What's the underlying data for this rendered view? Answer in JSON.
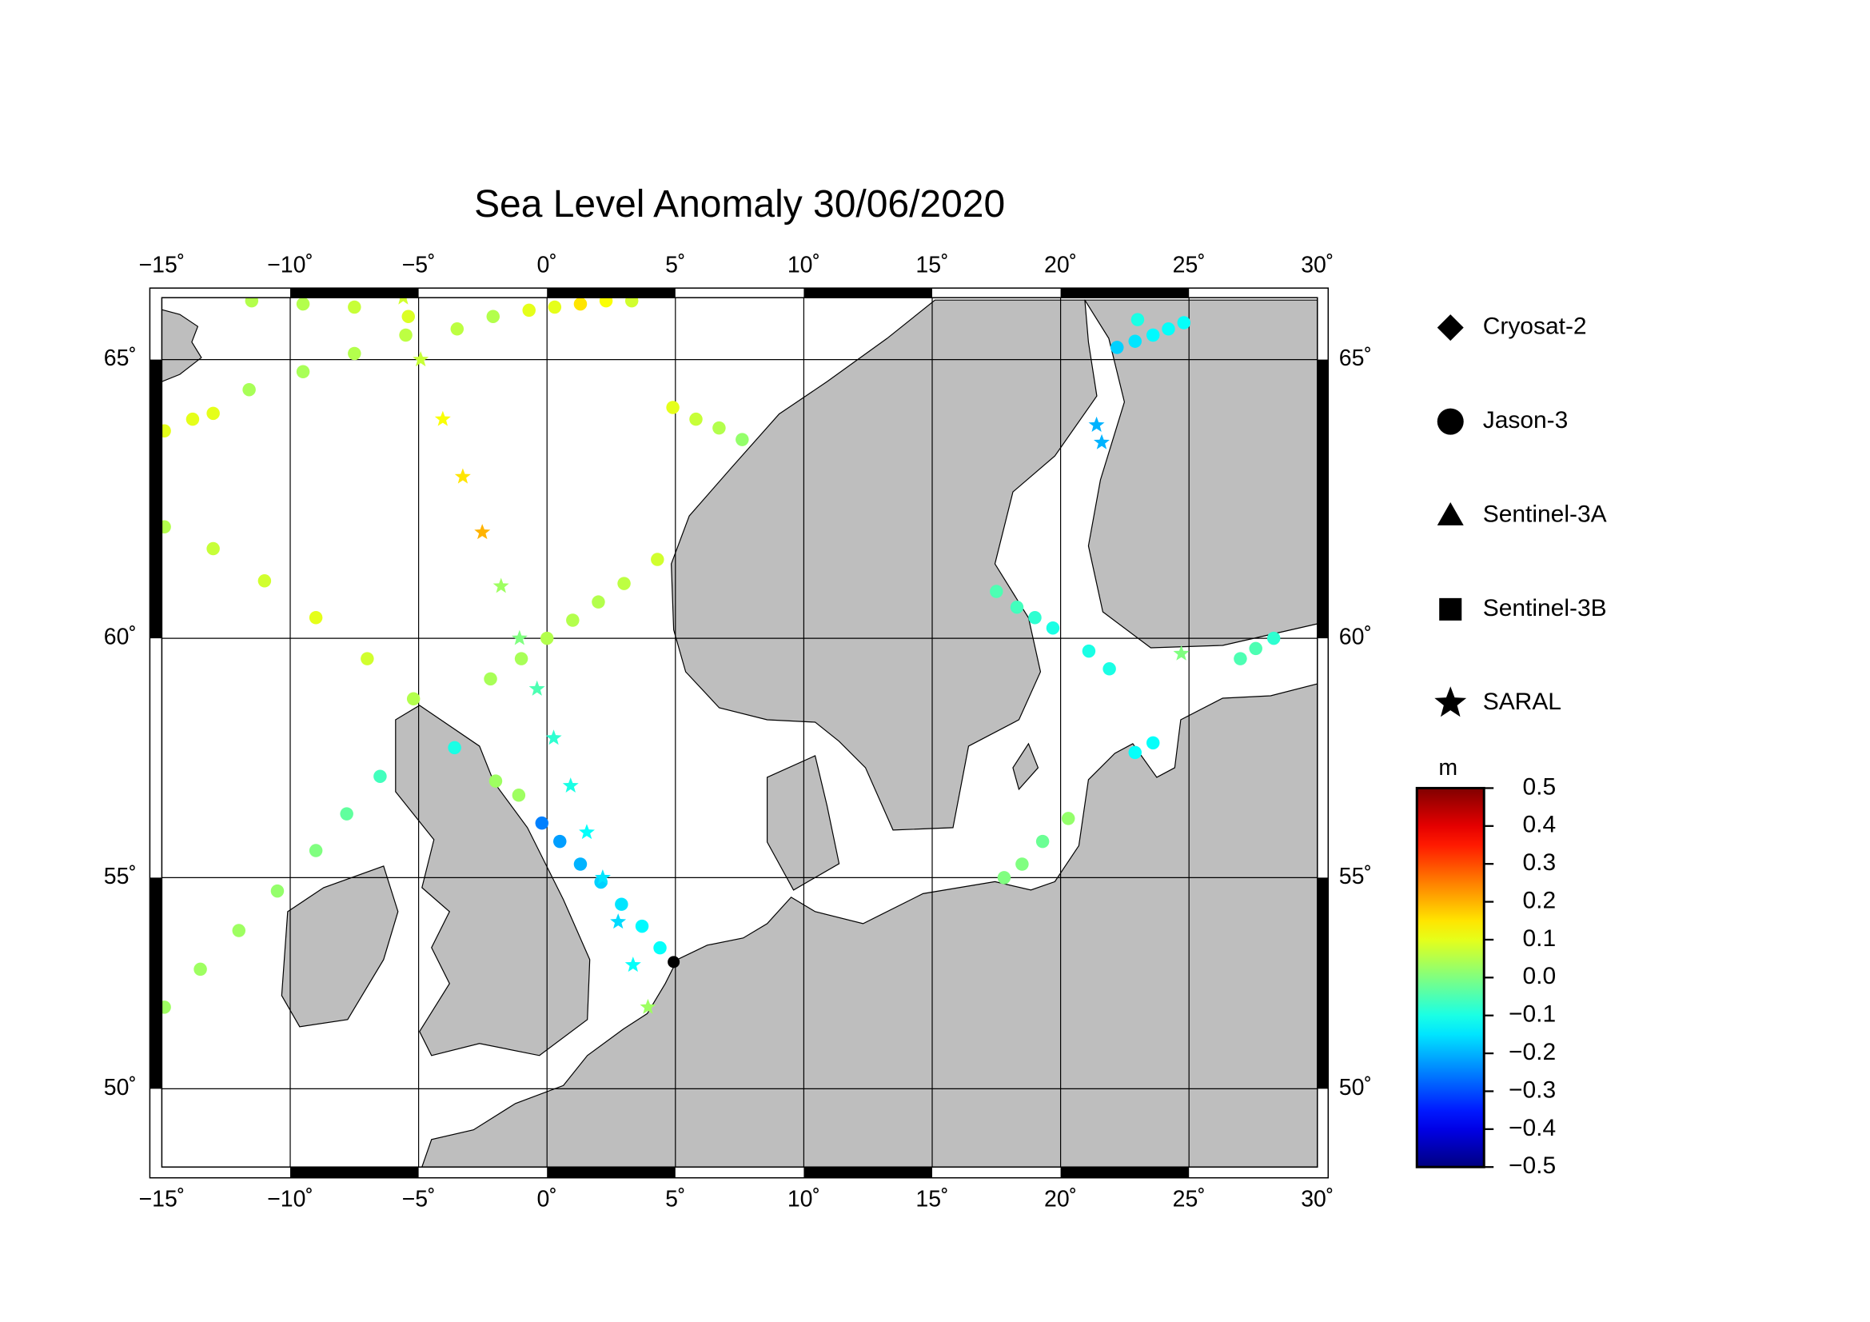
{
  "title": "Sea Level Anomaly 30/06/2020",
  "map": {
    "projection": "mercator",
    "xlim": [
      -15,
      30
    ],
    "ylim": [
      48,
      66
    ],
    "xticks": [
      {
        "value": -15,
        "label": "−15˚"
      },
      {
        "value": -10,
        "label": "−10˚"
      },
      {
        "value": -5,
        "label": "−5˚"
      },
      {
        "value": 0,
        "label": "0˚"
      },
      {
        "value": 5,
        "label": "5˚"
      },
      {
        "value": 10,
        "label": "10˚"
      },
      {
        "value": 15,
        "label": "15˚"
      },
      {
        "value": 20,
        "label": "20˚"
      },
      {
        "value": 25,
        "label": "25˚"
      },
      {
        "value": 30,
        "label": "30˚"
      }
    ],
    "yticks": [
      {
        "value": 50,
        "label": "50˚"
      },
      {
        "value": 55,
        "label": "55˚"
      },
      {
        "value": 60,
        "label": "60˚"
      },
      {
        "value": 65,
        "label": "65˚"
      }
    ],
    "grid": true,
    "land_color": "#bebebe",
    "series": [
      {
        "name": "Cryosat-2",
        "marker": "diamond"
      },
      {
        "name": "Jason-3",
        "marker": "circle",
        "lon": [
          -14.9,
          -13.5,
          -12,
          -10.5,
          -9,
          -7.8,
          -6.5,
          -3.6,
          -2.2,
          -1,
          0,
          1,
          2,
          3,
          4.3,
          -14.9,
          -13,
          -11,
          -9,
          -7,
          -5.2,
          -14.9,
          -13.8,
          -13,
          -11.6,
          -9.5,
          -7.5,
          -5.5,
          -3.5,
          -2.1,
          -11.5,
          -9.5,
          -7.5,
          -5.4,
          -0.7,
          0.3,
          1.3,
          2.3,
          3.3,
          4.9,
          5.8,
          6.7,
          7.6,
          -2,
          -1.1,
          -0.2,
          0.5,
          1.3,
          2.1,
          2.9,
          3.7,
          4.4,
          17.5,
          18.3,
          19,
          19.7,
          21.1,
          21.9,
          22.9,
          23.6,
          17.8,
          18.5,
          19.3,
          20.3,
          22.2,
          22.9,
          23.6,
          24.2,
          24.8,
          23,
          27,
          27.6,
          28.3
        ],
        "lat": [
          52.0,
          52.9,
          53.8,
          54.7,
          55.6,
          56.4,
          57.2,
          57.8,
          59.2,
          59.6,
          60.0,
          60.35,
          60.7,
          61.05,
          61.5,
          62.1,
          61.7,
          61.1,
          60.4,
          59.6,
          58.8,
          63.8,
          64.0,
          64.1,
          64.5,
          64.8,
          65.1,
          65.4,
          65.5,
          65.7,
          65.95,
          65.9,
          65.85,
          65.7,
          65.8,
          65.85,
          65.9,
          65.95,
          65.95,
          64.2,
          64.0,
          63.85,
          63.65,
          57.1,
          56.8,
          56.2,
          55.8,
          55.3,
          54.9,
          54.4,
          53.9,
          53.4,
          60.9,
          60.6,
          60.4,
          60.2,
          59.75,
          59.4,
          57.7,
          57.9,
          55.0,
          55.3,
          55.8,
          56.3,
          65.2,
          65.3,
          65.4,
          65.5,
          65.6,
          65.65,
          59.6,
          59.8,
          60.0
        ],
        "values": [
          0.03,
          0.03,
          0.03,
          0.02,
          0.0,
          -0.03,
          -0.06,
          -0.1,
          0.04,
          0.04,
          0.05,
          0.05,
          0.05,
          0.06,
          0.08,
          0.05,
          0.07,
          0.08,
          0.1,
          0.08,
          0.05,
          0.1,
          0.1,
          0.1,
          0.04,
          0.04,
          0.05,
          0.06,
          0.06,
          0.05,
          0.05,
          0.05,
          0.07,
          0.09,
          0.1,
          0.1,
          0.15,
          0.12,
          0.08,
          0.1,
          0.07,
          0.05,
          0.02,
          0.03,
          0.03,
          -0.25,
          -0.22,
          -0.2,
          -0.17,
          -0.15,
          -0.13,
          -0.12,
          -0.05,
          -0.06,
          -0.08,
          -0.1,
          -0.1,
          -0.1,
          -0.12,
          -0.12,
          0.0,
          0.0,
          -0.02,
          0.02,
          -0.17,
          -0.15,
          -0.13,
          -0.12,
          -0.12,
          -0.1,
          -0.05,
          -0.05,
          -0.08
        ]
      },
      {
        "name": "Sentinel-3A",
        "marker": "triangle"
      },
      {
        "name": "Sentinel-3B",
        "marker": "square"
      },
      {
        "name": "SARAL",
        "marker": "star",
        "lon": [
          -5.6,
          -4.92,
          -4.06,
          -3.28,
          -2.52,
          -1.79,
          -1.07,
          -0.39,
          0.26,
          0.92,
          1.55,
          2.17,
          2.77,
          3.35,
          3.93,
          21.4,
          21.6,
          24.7
        ],
        "lat": [
          66.0,
          65,
          64,
          63,
          62,
          61,
          60,
          59,
          58,
          57,
          56,
          55,
          54,
          53,
          52,
          63.9,
          63.6,
          59.7
        ],
        "values": [
          0.08,
          0.07,
          0.12,
          0.15,
          0.2,
          0.03,
          0.0,
          -0.05,
          -0.08,
          -0.1,
          -0.12,
          -0.15,
          -0.16,
          -0.12,
          0.03,
          -0.2,
          -0.2,
          0.0
        ]
      }
    ]
  },
  "colorbar": {
    "label": "m",
    "colormap": "jet",
    "lim": [
      -0.5,
      0.5
    ],
    "ticks": [
      0.5,
      0.4,
      0.3,
      0.2,
      0.1,
      {
        "value": 0,
        "label": "0.0"
      },
      {
        "value": -0.1,
        "label": "−0.1"
      },
      {
        "value": -0.2,
        "label": "−0.2"
      },
      {
        "value": -0.3,
        "label": "−0.3"
      },
      {
        "value": -0.4,
        "label": "−0.4"
      },
      {
        "value": -0.5,
        "label": "−0.5"
      }
    ]
  }
}
